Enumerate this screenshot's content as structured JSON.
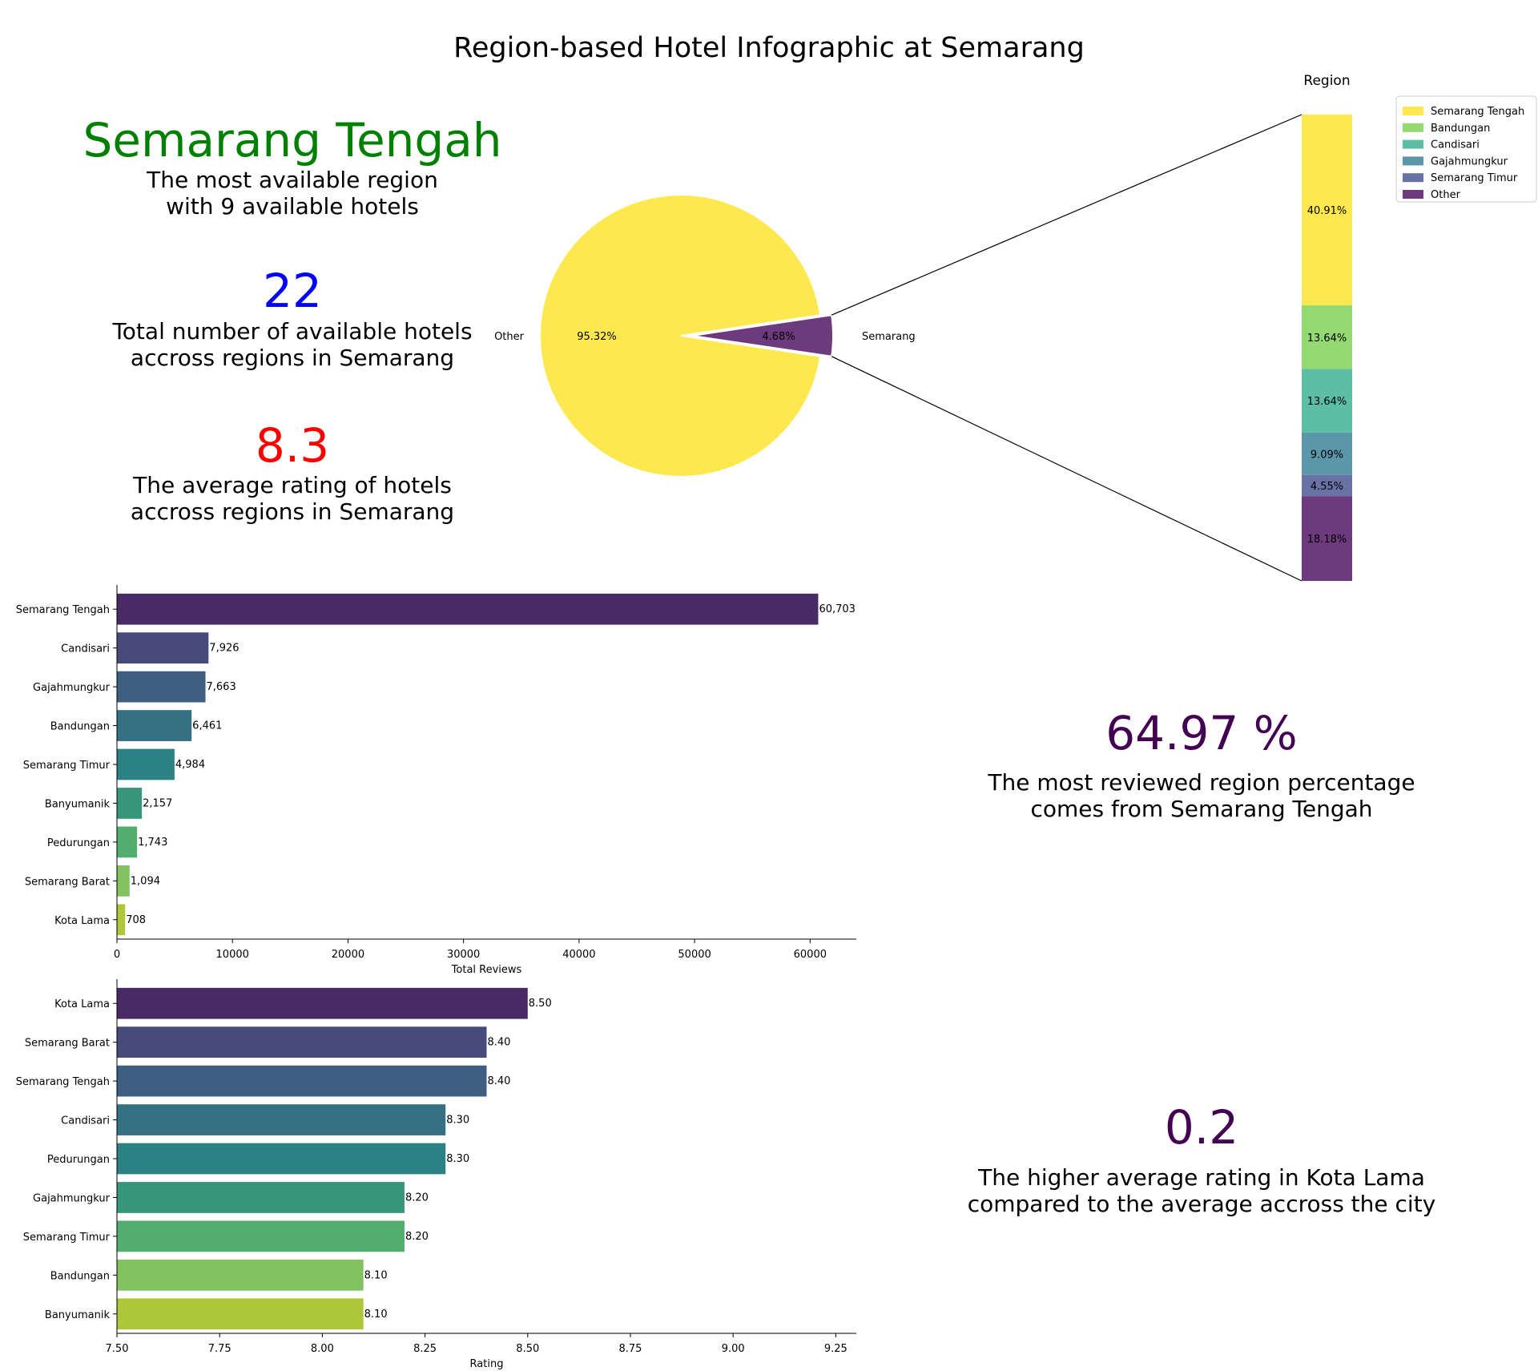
{
  "title": "Region-based Hotel Infographic at Semarang",
  "kpis": {
    "top_region": {
      "value": "Semarang Tengah",
      "desc": "The most available region\nwith 9 available hotels",
      "color": "#008000"
    },
    "total_hotels": {
      "value": "22",
      "desc": "Total number of available hotels\naccross regions in Semarang",
      "color": "#0000ff"
    },
    "avg_rating": {
      "value": "8.3",
      "desc": "The average rating of hotels\naccross regions in Semarang",
      "color": "#ff0000"
    },
    "review_share": {
      "value": "64.97 %",
      "desc": "The most reviewed region percentage\ncomes from Semarang Tengah",
      "color": "#440154"
    },
    "rating_diff": {
      "value": "0.2",
      "desc": "The higher average rating in Kota Lama\ncompared to the average accross the city",
      "color": "#440154"
    }
  },
  "chart_data": [
    {
      "type": "pie",
      "slices": [
        {
          "label": "Other",
          "value": 95.32,
          "pct_label": "95.32%",
          "color": "#fde94f"
        },
        {
          "label": "Semarang",
          "value": 4.68,
          "pct_label": "4.68%",
          "color": "#6c3a7d"
        }
      ]
    },
    {
      "type": "bar",
      "orientation": "vertical-stacked",
      "title": "Region",
      "series": [
        {
          "name": "Semarang Tengah",
          "value": 40.91,
          "pct_label": "40.91%",
          "color": "#fde94f"
        },
        {
          "name": "Bandungan",
          "value": 13.64,
          "pct_label": "13.64%",
          "color": "#95d973"
        },
        {
          "name": "Candisari",
          "value": 13.64,
          "pct_label": "13.64%",
          "color": "#5cbea5"
        },
        {
          "name": "Gajahmungkur",
          "value": 9.09,
          "pct_label": "9.09%",
          "color": "#5b96a9"
        },
        {
          "name": "Semarang Timur",
          "value": 4.55,
          "pct_label": "4.55%",
          "color": "#6972a5"
        },
        {
          "name": "Other",
          "value": 18.18,
          "pct_label": "18.18%",
          "color": "#6c3a7d"
        }
      ],
      "legend": "upper-right"
    },
    {
      "type": "bar",
      "orientation": "horizontal",
      "xlabel": "Total Reviews",
      "xlim": [
        0,
        64000
      ],
      "xticks": [
        0,
        10000,
        20000,
        30000,
        40000,
        50000,
        60000
      ],
      "categories": [
        "Semarang Tengah",
        "Candisari",
        "Gajahmungkur",
        "Bandungan",
        "Semarang Timur",
        "Banyumanik",
        "Pedurungan",
        "Semarang Barat",
        "Kota Lama"
      ],
      "values": [
        60703,
        7926,
        7663,
        6461,
        4984,
        2157,
        1743,
        1094,
        708
      ],
      "value_labels": [
        "60,703",
        "7,926",
        "7,663",
        "6,461",
        "4,984",
        "2,157",
        "1,743",
        "1,094",
        "708"
      ],
      "colors": [
        "#482a67",
        "#464b7b",
        "#3e5f82",
        "#347283",
        "#2c8282",
        "#37967a",
        "#52ae6e",
        "#82c260",
        "#aec63a"
      ]
    },
    {
      "type": "bar",
      "orientation": "horizontal",
      "xlabel": "Rating",
      "xlim": [
        7.5,
        9.3
      ],
      "xticks": [
        7.5,
        7.75,
        8.0,
        8.25,
        8.5,
        8.75,
        9.0,
        9.25
      ],
      "xtick_labels": [
        "7.50",
        "7.75",
        "8.00",
        "8.25",
        "8.50",
        "8.75",
        "9.00",
        "9.25"
      ],
      "categories": [
        "Kota Lama",
        "Semarang Barat",
        "Semarang Tengah",
        "Candisari",
        "Pedurungan",
        "Gajahmungkur",
        "Semarang Timur",
        "Bandungan",
        "Banyumanik"
      ],
      "values": [
        8.5,
        8.4,
        8.4,
        8.3,
        8.3,
        8.2,
        8.2,
        8.1,
        8.1
      ],
      "value_labels": [
        "8.50",
        "8.40",
        "8.40",
        "8.30",
        "8.30",
        "8.20",
        "8.20",
        "8.10",
        "8.10"
      ],
      "colors": [
        "#482a67",
        "#464b7b",
        "#3e5f82",
        "#347283",
        "#2c8282",
        "#37967a",
        "#52ae6e",
        "#82c260",
        "#aec63a"
      ]
    }
  ]
}
